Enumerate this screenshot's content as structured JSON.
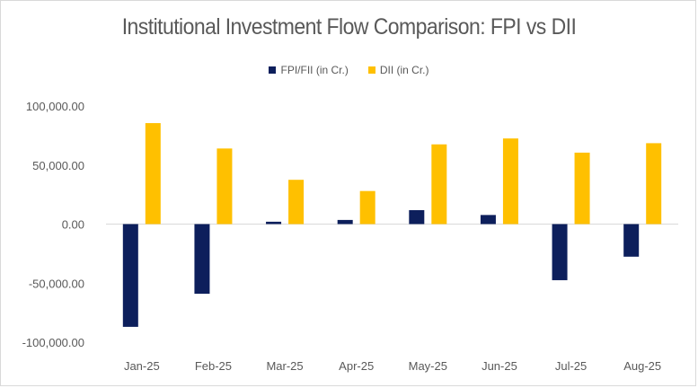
{
  "chart_data": {
    "type": "bar",
    "title": "Institutional Investment Flow Comparison: FPI vs DII",
    "categories": [
      "Jan-25",
      "Feb-25",
      "Mar-25",
      "Apr-25",
      "May-25",
      "Jun-25",
      "Jul-25",
      "Aug-25"
    ],
    "series": [
      {
        "name": "FPI/FII (in Cr.)",
        "color": "#0d1f5c",
        "values": [
          -87000,
          -59000,
          2000,
          3500,
          11800,
          7700,
          -47500,
          -27600
        ]
      },
      {
        "name": "DII (in Cr.)",
        "color": "#ffc000",
        "values": [
          85500,
          64000,
          37500,
          28000,
          67500,
          72500,
          60500,
          68500
        ]
      }
    ],
    "y_ticks": [
      "100,000.00",
      "50,000.00",
      "0.00",
      "-50,000.00",
      "-100,000.00"
    ],
    "ylim": [
      -100000,
      100000
    ],
    "legend_position": "top",
    "grid": false
  }
}
